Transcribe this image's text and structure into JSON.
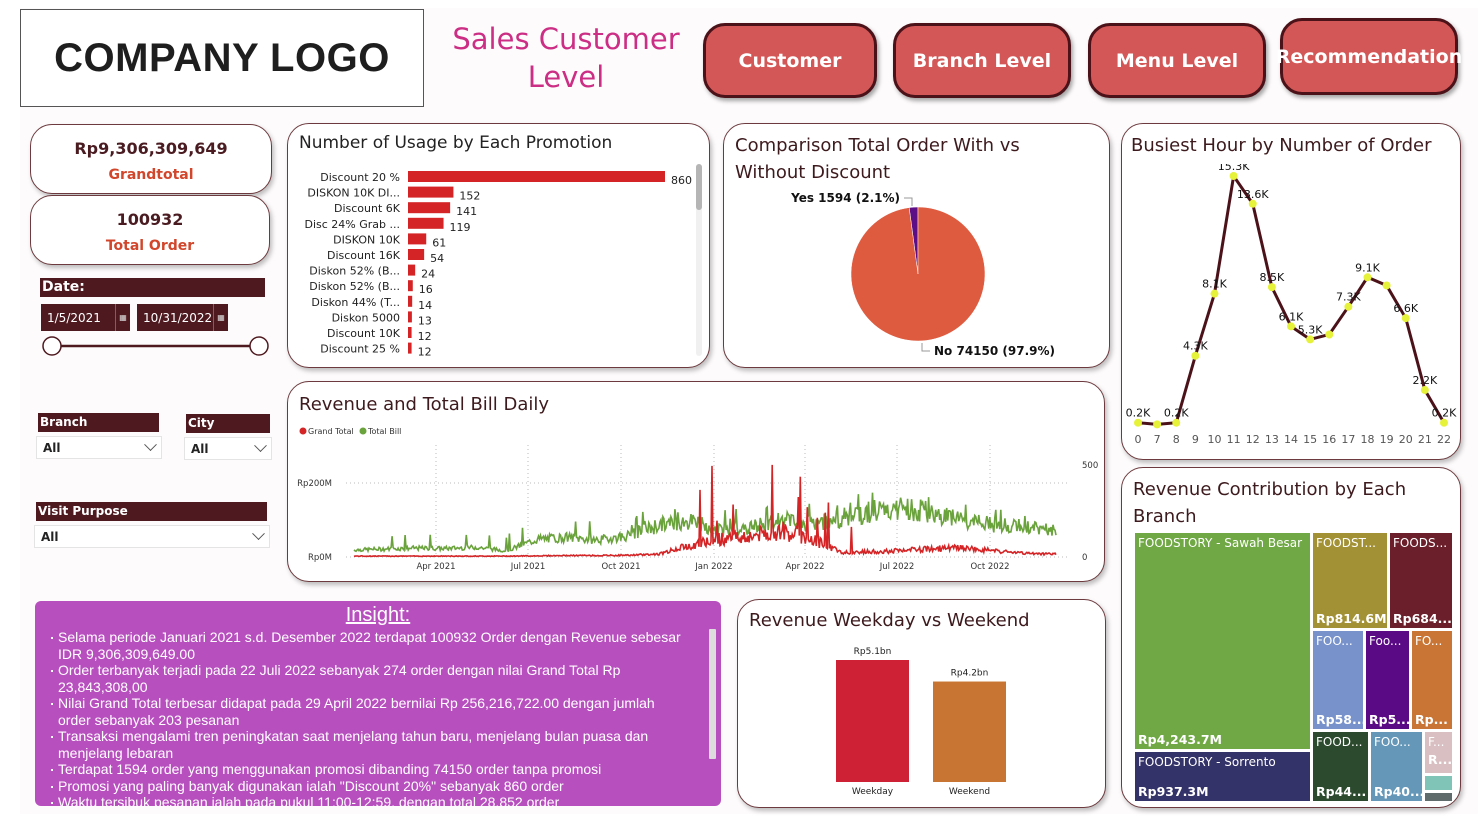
{
  "header": {
    "logo": "COMPANY LOGO",
    "title": "Sales Customer Level",
    "nav": [
      {
        "label": "Customer"
      },
      {
        "label": "Branch Level"
      },
      {
        "label": "Menu Level"
      },
      {
        "label": "Recommendation"
      }
    ]
  },
  "kpis": {
    "grandtotal": {
      "value": "Rp9,306,309,649",
      "label": "Grandtotal"
    },
    "total_order": {
      "value": "100932",
      "label": "Total Order"
    }
  },
  "filters": {
    "date": {
      "label": "Date:",
      "start": "1/5/2021",
      "end": "10/31/2022",
      "range_fraction": [
        0.0,
        1.0
      ]
    },
    "branch": {
      "label": "Branch",
      "value": "All"
    },
    "city": {
      "label": "City",
      "value": "All"
    },
    "visit_purpose": {
      "label": "Visit Purpose",
      "value": "All"
    }
  },
  "insight": {
    "title": "Insight:",
    "items": [
      "Selama periode Januari 2021 s.d. Desember 2022 terdapat 100932 Order dengan  Revenue sebesar IDR 9,306,309,649.00",
      "Order terbanyak terjadi pada 22 Juli 2022 sebanyak 274 order dengan nilai Grand Total Rp 23,843,308,00",
      "Nilai Grand Total terbesar didapat pada 29 April 2022 bernilai Rp 256,216,722.00 dengan jumlah order sebanyak 203 pesanan",
      "Transaksi mengalami tren peningkatan saat menjelang tahun baru, menjelang bulan puasa dan menjelang lebaran",
      "Terdapat 1594 order yang menggunakan promosi dibanding 74150 order tanpa promosi",
      "Promosi yang paling banyak digunakan ialah \"Discount 20%\" sebanyak 860 order",
      "Waktu tersibuk pesanan ialah pada pukul 11:00-12:59, dengan total 28,852 order"
    ]
  },
  "colors": {
    "accent": "#d35756",
    "dark": "#4e1a20",
    "title_pink": "#cc2e85",
    "insight_bg": "#b84fbf"
  },
  "chart_data": [
    {
      "id": "promo",
      "type": "bar",
      "orientation": "horizontal",
      "title": "Number of Usage by Each Promotion",
      "categories": [
        "Discount 20 %",
        "DISKON 10K DI...",
        "Discount 6K",
        "Disc 24% Grab ...",
        "DISKON 10K",
        "Discount 16K",
        "Diskon 52% (B...",
        "Diskon 52% (B...",
        "Diskon 44% (T...",
        "Diskon 5000",
        "Discount 10K",
        "Discount 25 %"
      ],
      "values": [
        860,
        152,
        141,
        119,
        61,
        54,
        24,
        16,
        14,
        13,
        12,
        12
      ],
      "color": "#d42426"
    },
    {
      "id": "discount_pie",
      "type": "pie",
      "title": "Comparison Total Order With vs Without Discount",
      "slices": [
        {
          "label": "Yes",
          "value": 1594,
          "pct": "2.1%",
          "color": "#5c0e86",
          "text": "Yes 1594 (2.1%)"
        },
        {
          "label": "No",
          "value": 74150,
          "pct": "97.9%",
          "color": "#de5b40",
          "text": "No 74150 (97.9%)"
        }
      ]
    },
    {
      "id": "busiest_hour",
      "type": "line",
      "title": "Busiest Hour by Number of Order",
      "categories": [
        "0",
        "7",
        "8",
        "9",
        "10",
        "11",
        "12",
        "13",
        "14",
        "15",
        "16",
        "17",
        "18",
        "19",
        "20",
        "21",
        "22"
      ],
      "values": [
        0.2,
        0.1,
        0.2,
        4.3,
        8.1,
        15.3,
        13.6,
        8.5,
        6.1,
        5.3,
        5.6,
        7.3,
        9.1,
        8.6,
        6.6,
        2.2,
        0.2
      ],
      "labels": [
        "0.2K",
        "",
        "0.2K",
        "4.3K",
        "8.1K",
        "15.3K",
        "13.6K",
        "8.5K",
        "6.1K",
        "5.3K",
        "",
        "7.3K",
        "9.1K",
        "",
        "6.6K",
        "2.2K",
        "0.2K"
      ],
      "unit": "K orders",
      "line_color": "#4b1219",
      "marker_color": "#e6f23a"
    },
    {
      "id": "revenue_daily",
      "type": "line",
      "title": "Revenue and Total Bill Daily",
      "legend": [
        {
          "name": "Grand Total",
          "color": "#d42426"
        },
        {
          "name": "Total Bill",
          "color": "#6aa23b"
        }
      ],
      "legend_position": "top-left",
      "x_ticks": [
        "Apr 2021",
        "Jul 2021",
        "Oct 2021",
        "Jan 2022",
        "Apr 2022",
        "Jul 2022",
        "Oct 2022"
      ],
      "y_left_ticks": [
        "Rp0M",
        "Rp200M"
      ],
      "y_left_range": [
        0,
        200
      ],
      "y_right_ticks": [
        "0",
        "500"
      ],
      "y_right_range": [
        0,
        500
      ],
      "x_range": [
        "2021-01-05",
        "2022-12-15"
      ],
      "grid": true,
      "series": [
        {
          "name": "Grand Total",
          "axis": "left",
          "unit": "Rp M",
          "monthly_approx": [
            3,
            3,
            3,
            3,
            3,
            3,
            4,
            5,
            5,
            6,
            10,
            40,
            60,
            70,
            90,
            60,
            15,
            18,
            22,
            28,
            30,
            20,
            12,
            10
          ],
          "peak": 256
        },
        {
          "name": "Total Bill",
          "axis": "right",
          "monthly_approx": [
            40,
            45,
            50,
            48,
            55,
            35,
            100,
            110,
            95,
            120,
            180,
            200,
            150,
            160,
            220,
            180,
            220,
            260,
            270,
            250,
            200,
            180,
            170,
            150
          ]
        }
      ]
    },
    {
      "id": "weekday_weekend",
      "type": "bar",
      "title": "Revenue Weekday vs Weekend",
      "categories": [
        "Weekday",
        "Weekend"
      ],
      "values": [
        5.1,
        4.2
      ],
      "value_labels": [
        "Rp5.1bn",
        "Rp4.2bn"
      ],
      "unit": "Rp bn",
      "colors": [
        "#cf2136",
        "#c87533"
      ]
    },
    {
      "id": "branch_treemap",
      "type": "treemap",
      "title": "Revenue Contribution by Each Branch",
      "items": [
        {
          "label": "FOODSTORY - Sawah Besar",
          "value_label": "Rp4,243.7M",
          "value": 4243.7,
          "color": "#70a845"
        },
        {
          "label": "FOODSTORY - Sorrento",
          "value_label": "Rp937.3M",
          "value": 937.3,
          "color": "#343369"
        },
        {
          "label": "FOODST...",
          "value_label": "Rp814.6M",
          "value": 814.6,
          "color": "#a29135"
        },
        {
          "label": "FOODS...",
          "value_label": "Rp684....",
          "value": 684,
          "color": "#6a1f2a"
        },
        {
          "label": "FOO...",
          "value_label": "Rp58...",
          "value": 580,
          "color": "#7893cc"
        },
        {
          "label": "Foo...",
          "value_label": "Rp5...",
          "value": 500,
          "color": "#5b0a86"
        },
        {
          "label": "FO...",
          "value_label": "Rp...",
          "value": 480,
          "color": "#c97535"
        },
        {
          "label": "FOOD...",
          "value_label": "Rp44...",
          "value": 440,
          "color": "#2c4b2e"
        },
        {
          "label": "FOO...",
          "value_label": "Rp40...",
          "value": 400,
          "color": "#6497b8"
        },
        {
          "label": "F...",
          "value_label": "R...",
          "value": 150,
          "color": "#d9bfc1"
        },
        {
          "label": "",
          "value_label": "",
          "value": 50,
          "color": "#7fc4b6"
        },
        {
          "label": "",
          "value_label": "",
          "value": 30,
          "color": "#5f6a6b"
        }
      ]
    }
  ]
}
